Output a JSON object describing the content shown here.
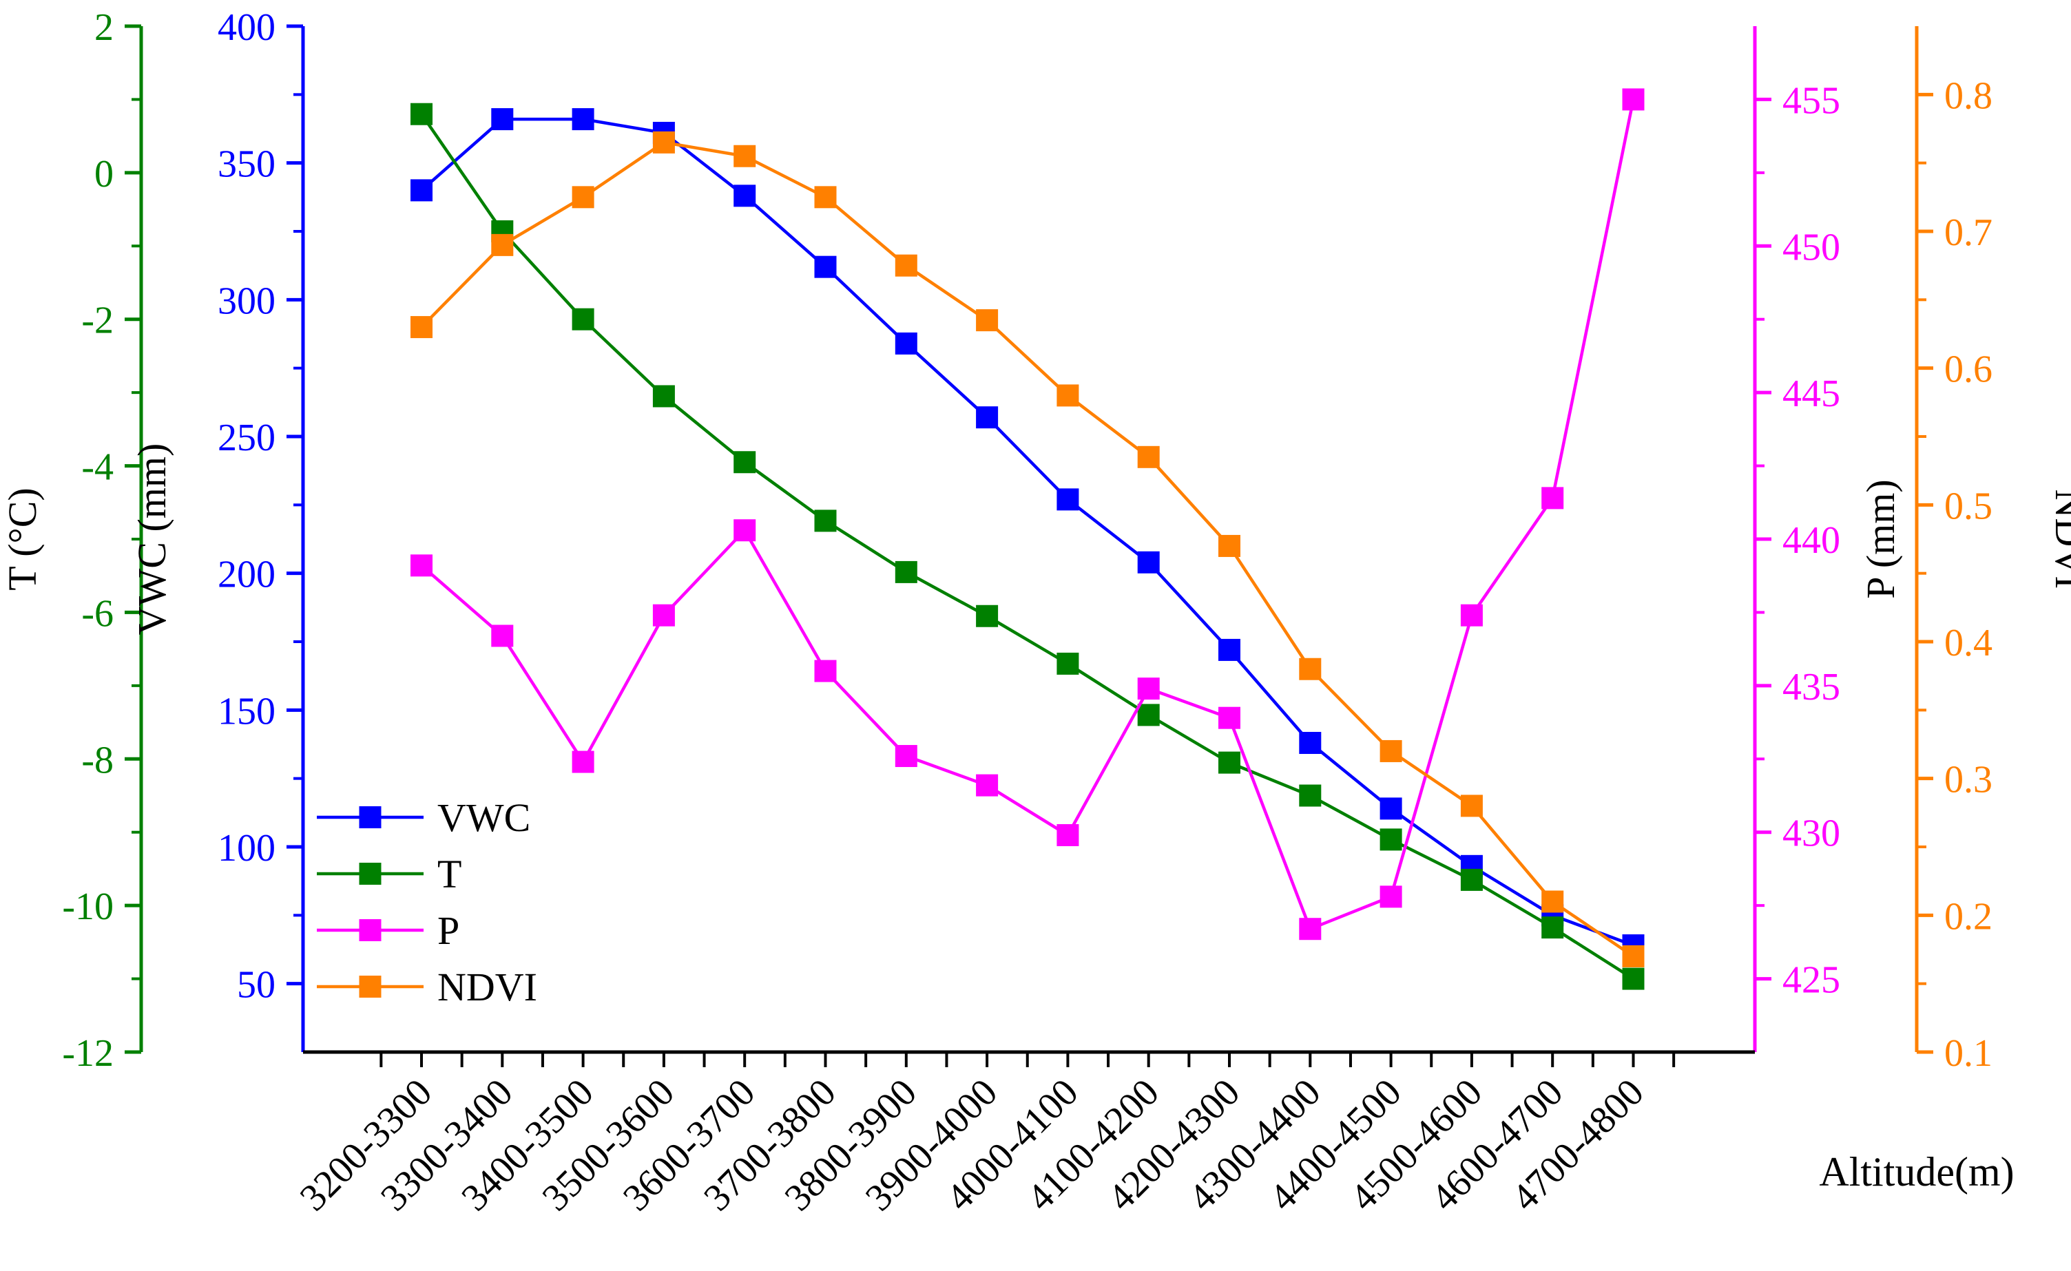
{
  "chart_data": {
    "type": "line",
    "categories": [
      "3200-3300",
      "3300-3400",
      "3400-3500",
      "3500-3600",
      "3600-3700",
      "3700-3800",
      "3800-3900",
      "3900-4000",
      "4000-4100",
      "4100-4200",
      "4200-4300",
      "4300-4400",
      "4400-4500",
      "4500-4600",
      "4600-4700",
      "4700-4800"
    ],
    "xlabel": "Altitude(m)",
    "axes": {
      "T": {
        "label": "T (°C)",
        "min": -12,
        "max": 2,
        "ticks": [
          -12,
          -10,
          -8,
          -6,
          -4,
          -2,
          0,
          2
        ],
        "color": "#008000"
      },
      "VWC": {
        "label": "VWC (mm)",
        "min": 25,
        "max": 400,
        "ticks": [
          50,
          100,
          150,
          200,
          250,
          300,
          350,
          400
        ],
        "color": "#0000ff"
      },
      "P": {
        "label": "P (mm)",
        "min": 422.5,
        "max": 457.5,
        "ticks": [
          425,
          430,
          435,
          440,
          445,
          450,
          455
        ],
        "color": "#ff00ff"
      },
      "NDVI": {
        "label": "NDVI",
        "min": 0.1,
        "max": 0.85,
        "ticks": [
          "0.1",
          "0.2",
          "0.3",
          "0.4",
          "0.5",
          "0.6",
          "0.7",
          "0.8"
        ],
        "color": "#ff8000"
      }
    },
    "series": [
      {
        "name": "VWC",
        "axis": "VWC",
        "color": "#0000ff",
        "values": [
          340,
          366,
          366,
          361,
          338,
          312,
          284,
          257,
          227,
          204,
          172,
          138,
          114,
          93,
          75,
          64
        ]
      },
      {
        "name": "T",
        "axis": "T",
        "color": "#008000",
        "values": [
          0.8,
          -0.8,
          -2.0,
          -3.05,
          -3.95,
          -4.75,
          -5.45,
          -6.05,
          -6.7,
          -7.4,
          -8.05,
          -8.5,
          -9.1,
          -9.65,
          -10.3,
          -11.0
        ]
      },
      {
        "name": "P",
        "axis": "P",
        "color": "#ff00ff",
        "values": [
          439.1,
          436.7,
          432.4,
          437.4,
          440.3,
          435.5,
          432.6,
          431.6,
          429.9,
          434.9,
          433.9,
          426.7,
          427.8,
          437.4,
          441.4,
          455.0
        ]
      },
      {
        "name": "NDVI",
        "axis": "NDVI",
        "color": "#ff8000",
        "values": [
          0.63,
          0.69,
          0.725,
          0.765,
          0.755,
          0.725,
          0.675,
          0.635,
          0.58,
          0.535,
          0.47,
          0.38,
          0.32,
          0.28,
          0.21,
          0.17
        ]
      }
    ],
    "legend": {
      "placement": "bottom-left",
      "entries": [
        "VWC",
        "T",
        "P",
        "NDVI"
      ]
    },
    "grid": false
  }
}
